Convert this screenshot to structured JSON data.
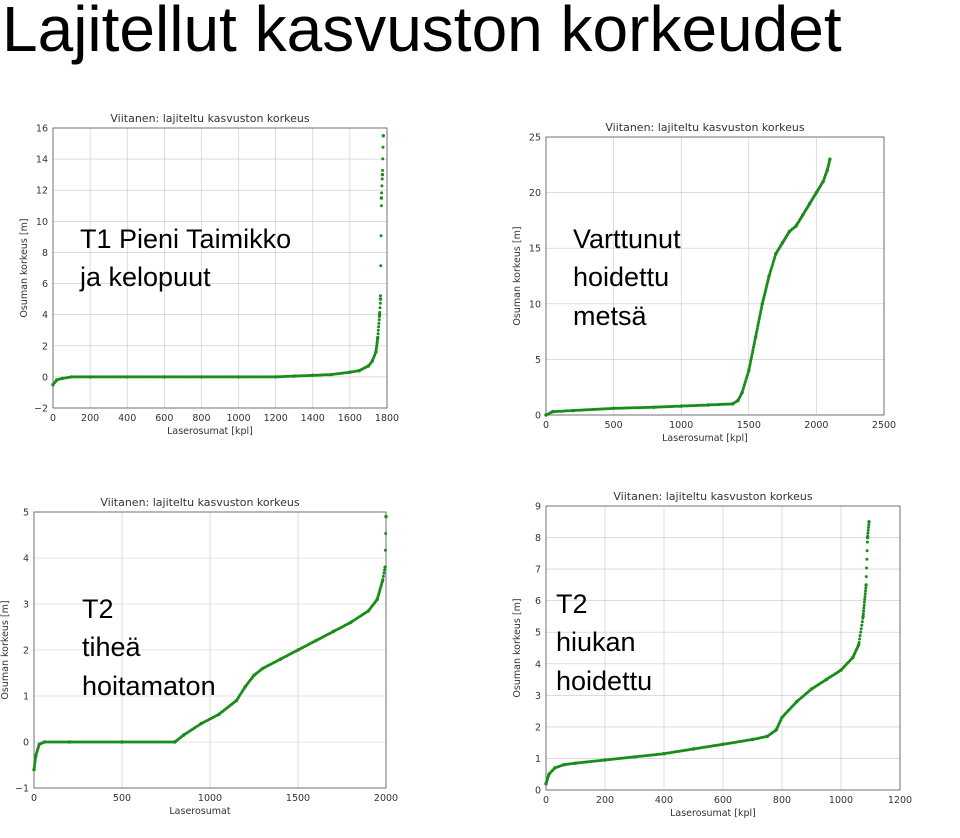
{
  "slide": {
    "title": "Lajitellut kasvuston korkeudet"
  },
  "colors": {
    "points": "#1a8c1a",
    "frame": "#555555",
    "grid": "#c8c8c8"
  },
  "chart_data": [
    {
      "type": "scatter",
      "title": "Viitanen: lajiteltu kasvuston korkeus",
      "xlabel": "Laserosumat [kpl]",
      "ylabel": "Osuman korkeus [m]",
      "overlay_text": "T1 Pieni Taimikko\nja kelopuut",
      "xlim": [
        0,
        1800
      ],
      "ylim": [
        -2,
        16
      ],
      "xticks": [
        0,
        200,
        400,
        600,
        800,
        1000,
        1200,
        1400,
        1600,
        1800
      ],
      "xtick_labels": [
        "0",
        "200",
        "400",
        "600",
        "800",
        "1000",
        "1200",
        "1400",
        "1600",
        "1800"
      ],
      "yticks": [
        -2,
        0,
        2,
        4,
        6,
        8,
        10,
        12,
        14,
        16
      ],
      "ytick_labels": [
        "−2",
        "0",
        "2",
        "4",
        "6",
        "8",
        "10",
        "12",
        "14",
        "16"
      ],
      "grid": true,
      "x": [
        0,
        20,
        50,
        100,
        200,
        400,
        600,
        800,
        1000,
        1200,
        1300,
        1400,
        1500,
        1600,
        1650,
        1700,
        1720,
        1740,
        1750,
        1760,
        1765,
        1770,
        1775,
        1780
      ],
      "y": [
        -0.5,
        -0.2,
        -0.1,
        0,
        0,
        0,
        0,
        0,
        0,
        0,
        0.05,
        0.1,
        0.15,
        0.3,
        0.4,
        0.7,
        1,
        1.6,
        2.5,
        4,
        5,
        11.5,
        13,
        15.5
      ]
    },
    {
      "type": "scatter",
      "title": "Viitanen: lajiteltu kasvuston korkeus",
      "xlabel": "Laserosumat [kpl]",
      "ylabel": "Osuman korkeus [m]",
      "overlay_text": "Varttunut\nhoidettu\nmetsä",
      "xlim": [
        0,
        2500
      ],
      "ylim": [
        0,
        25
      ],
      "xticks": [
        0,
        500,
        1000,
        1500,
        2000,
        2500
      ],
      "xtick_labels": [
        "0",
        "500",
        "1000",
        "1500",
        "2000",
        "2500"
      ],
      "yticks": [
        0,
        5,
        10,
        15,
        20,
        25
      ],
      "ytick_labels": [
        "0",
        "5",
        "10",
        "15",
        "20",
        "25"
      ],
      "grid": true,
      "x": [
        0,
        50,
        200,
        500,
        800,
        1000,
        1200,
        1380,
        1420,
        1450,
        1500,
        1550,
        1600,
        1650,
        1700,
        1750,
        1800,
        1850,
        1900,
        1950,
        2000,
        2050,
        2080,
        2100
      ],
      "y": [
        0,
        0.3,
        0.4,
        0.6,
        0.7,
        0.8,
        0.9,
        1,
        1.3,
        2,
        4,
        7,
        10,
        12.5,
        14.5,
        15.5,
        16.5,
        17,
        18,
        19,
        20,
        21,
        22,
        23
      ]
    },
    {
      "type": "scatter",
      "title": "Viitanen: lajiteltu kasvuston korkeus",
      "xlabel": "Laserosumat",
      "ylabel": "Osuman korkeus [m]",
      "overlay_text": "T2\ntiheä\nhoitamaton",
      "xlim": [
        0,
        2000
      ],
      "ylim": [
        -1,
        5
      ],
      "xticks": [
        0,
        500,
        1000,
        1500,
        2000
      ],
      "xtick_labels": [
        "0",
        "500",
        "1000",
        "1500",
        "2000"
      ],
      "yticks": [
        -1,
        0,
        1,
        2,
        3,
        4,
        5
      ],
      "ytick_labels": [
        "−1",
        "0",
        "1",
        "2",
        "3",
        "4",
        "5"
      ],
      "grid": true,
      "x": [
        0,
        10,
        30,
        60,
        200,
        500,
        800,
        850,
        950,
        1050,
        1150,
        1200,
        1250,
        1300,
        1400,
        1500,
        1600,
        1700,
        1800,
        1900,
        1950,
        1980,
        1995,
        2000
      ],
      "y": [
        -0.6,
        -0.3,
        -0.05,
        0,
        0,
        0,
        0,
        0.15,
        0.4,
        0.6,
        0.9,
        1.2,
        1.45,
        1.6,
        1.8,
        2,
        2.2,
        2.4,
        2.6,
        2.85,
        3.1,
        3.5,
        3.8,
        4.9
      ]
    },
    {
      "type": "scatter",
      "title": "Viitanen: lajiteltu kasvuston korkeus",
      "xlabel": "Laserosumat [kpl]",
      "ylabel": "Osuman korkeus [m]",
      "overlay_text": "T2\nhiukan\nhoidettu",
      "xlim": [
        0,
        1200
      ],
      "ylim": [
        0,
        9
      ],
      "xticks": [
        0,
        200,
        400,
        600,
        800,
        1000,
        1200
      ],
      "xtick_labels": [
        "0",
        "200",
        "400",
        "600",
        "800",
        "1000",
        "1200"
      ],
      "yticks": [
        0,
        1,
        2,
        3,
        4,
        5,
        6,
        7,
        8,
        9
      ],
      "ytick_labels": [
        "0",
        "1",
        "2",
        "3",
        "4",
        "5",
        "6",
        "7",
        "8",
        "9"
      ],
      "grid": true,
      "x": [
        0,
        10,
        30,
        60,
        100,
        200,
        300,
        400,
        500,
        600,
        700,
        750,
        780,
        800,
        850,
        900,
        950,
        1000,
        1040,
        1060,
        1075,
        1085,
        1090,
        1095
      ],
      "y": [
        0.2,
        0.5,
        0.7,
        0.8,
        0.85,
        0.95,
        1.05,
        1.15,
        1.3,
        1.45,
        1.6,
        1.7,
        1.9,
        2.3,
        2.8,
        3.2,
        3.5,
        3.8,
        4.2,
        4.6,
        5.5,
        6.5,
        8,
        8.5
      ]
    }
  ]
}
